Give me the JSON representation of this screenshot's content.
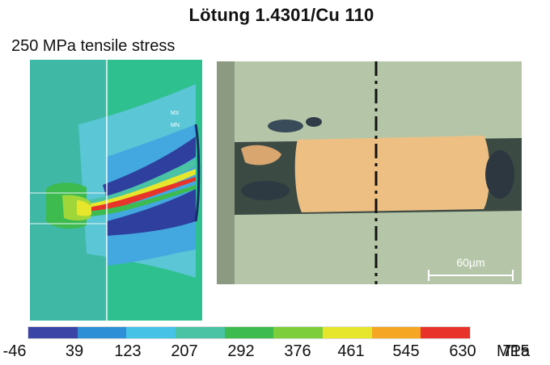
{
  "figure": {
    "title": "Lötung 1.4301/Cu 110",
    "subtitle": "250 MPa tensile stress"
  },
  "fe_model": {
    "corner_marks": [
      "MX",
      "MN"
    ]
  },
  "micrograph": {
    "scale_bar_label": "60µm"
  },
  "legend": {
    "tick_values": [
      "-46",
      "39",
      "123",
      "207",
      "292",
      "376",
      "461",
      "545",
      "630",
      "715"
    ],
    "unit": "MPa",
    "colors": [
      "#3a43a6",
      "#2f8fd6",
      "#46c2e6",
      "#49c3a4",
      "#3dbb4e",
      "#7ccf3a",
      "#e6e62c",
      "#f5a623",
      "#e8332a"
    ]
  }
}
